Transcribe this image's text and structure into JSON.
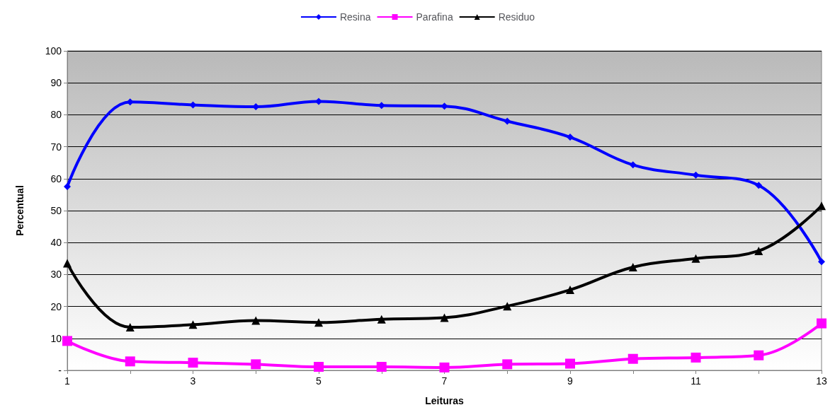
{
  "chart_data": {
    "type": "line",
    "xlabel": "Leituras",
    "ylabel": "Percentual",
    "x": [
      1,
      2,
      3,
      4,
      5,
      6,
      7,
      8,
      9,
      10,
      11,
      12,
      13
    ],
    "xlim": [
      1,
      13
    ],
    "xticks": [
      1,
      {
        "value": 2,
        "label": null
      },
      3,
      {
        "value": 4,
        "label": null
      },
      5,
      {
        "value": 6,
        "label": null
      },
      7,
      {
        "value": 8,
        "label": null
      },
      9,
      {
        "value": 10,
        "label": null
      },
      11,
      {
        "value": 12,
        "label": null
      },
      13
    ],
    "ylim": [
      0,
      100
    ],
    "yticks": [
      {
        "value": 0,
        "label": "-"
      },
      10,
      20,
      30,
      40,
      50,
      60,
      70,
      80,
      90,
      100
    ],
    "grid": "y",
    "legend": "top",
    "series": [
      {
        "name": "Resina",
        "color": "#0000ff",
        "marker": "diamond",
        "values": [
          57.5,
          84,
          83.1,
          82.5,
          84.2,
          82.9,
          82.7,
          78,
          73,
          64.3,
          61.1,
          57.9,
          34
        ]
      },
      {
        "name": "Parafina",
        "color": "#ff00ff",
        "marker": "square",
        "values": [
          9.2,
          2.8,
          2.4,
          1.9,
          1.1,
          1.1,
          0.9,
          1.9,
          2.1,
          3.6,
          4,
          4.7,
          14.7
        ]
      },
      {
        "name": "Residuo",
        "color": "#000000",
        "marker": "triangle",
        "values": [
          33.5,
          13.5,
          14.3,
          15.6,
          15,
          16,
          16.5,
          20.1,
          25.2,
          32.3,
          35,
          37.4,
          51.5
        ]
      }
    ]
  }
}
